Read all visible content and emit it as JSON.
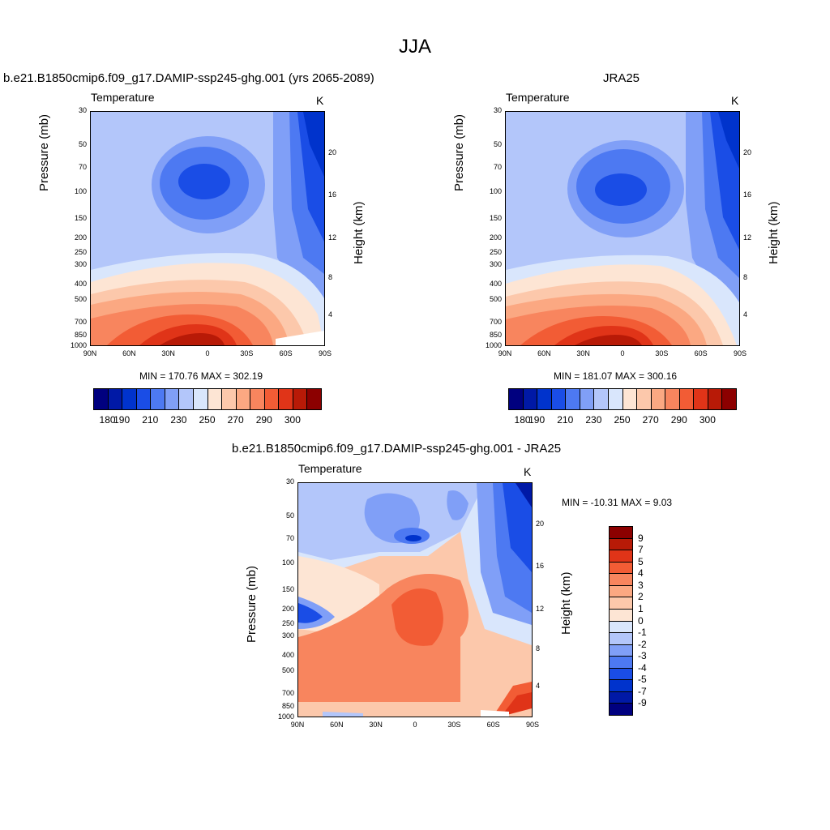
{
  "main_title": "JJA",
  "colors": [
    "#00007f",
    "#0019a6",
    "#0033cc",
    "#1a4de6",
    "#4d79f2",
    "#809ff7",
    "#b3c6fa",
    "#d9e6fc",
    "#fde5d4",
    "#fcc8ab",
    "#fba882",
    "#f8855e",
    "#f25c35",
    "#e03418",
    "#b81a07",
    "#8c0000"
  ],
  "chart_data": [
    {
      "type": "heatmap",
      "title": "b.e21.B1850cmip6.f09_g17.DAMIP-ssp245-ghg.001 (yrs 2065-2089)",
      "subtitle": "Temperature",
      "units": "K",
      "ylabel": "Pressure (mb)",
      "y2label": "Height (km)",
      "x_ticks": [
        "90N",
        "60N",
        "30N",
        "0",
        "30S",
        "60S",
        "90S"
      ],
      "y_ticks": [
        "30",
        "50",
        "70",
        "100",
        "150",
        "200",
        "250",
        "300",
        "400",
        "500",
        "700",
        "850",
        "1000"
      ],
      "y2_ticks": [
        "20",
        "16",
        "12",
        "8",
        "4"
      ],
      "min_max_text": "MIN = 170.76  MAX = 302.19",
      "colorbar_labels": [
        "180",
        "190",
        "210",
        "230",
        "250",
        "270",
        "290",
        "300"
      ],
      "min": 170.76,
      "max": 302.19
    },
    {
      "type": "heatmap",
      "title": "JRA25",
      "subtitle": "Temperature",
      "units": "K",
      "ylabel": "Pressure (mb)",
      "y2label": "Height (km)",
      "x_ticks": [
        "90N",
        "60N",
        "30N",
        "0",
        "30S",
        "60S",
        "90S"
      ],
      "y_ticks": [
        "30",
        "50",
        "70",
        "100",
        "150",
        "200",
        "250",
        "300",
        "400",
        "500",
        "700",
        "850",
        "1000"
      ],
      "y2_ticks": [
        "20",
        "16",
        "12",
        "8",
        "4"
      ],
      "min_max_text": "MIN = 181.07  MAX = 300.16",
      "colorbar_labels": [
        "180",
        "190",
        "210",
        "230",
        "250",
        "270",
        "290",
        "300"
      ],
      "min": 181.07,
      "max": 300.16
    },
    {
      "type": "heatmap",
      "title": "b.e21.B1850cmip6.f09_g17.DAMIP-ssp245-ghg.001 - JRA25",
      "subtitle": "Temperature",
      "units": "K",
      "ylabel": "Pressure (mb)",
      "y2label": "Height (km)",
      "x_ticks": [
        "90N",
        "60N",
        "30N",
        "0",
        "30S",
        "60S",
        "90S"
      ],
      "y_ticks": [
        "30",
        "50",
        "70",
        "100",
        "150",
        "200",
        "250",
        "300",
        "400",
        "500",
        "700",
        "850",
        "1000"
      ],
      "y2_ticks": [
        "20",
        "16",
        "12",
        "8",
        "4"
      ],
      "min_max_text": "MIN = -10.31  MAX =   9.03",
      "colorbar_labels": [
        "9",
        "7",
        "5",
        "4",
        "3",
        "2",
        "1",
        "0",
        "-1",
        "-2",
        "-3",
        "-4",
        "-5",
        "-7",
        "-9"
      ],
      "min": -10.31,
      "max": 9.03
    }
  ]
}
